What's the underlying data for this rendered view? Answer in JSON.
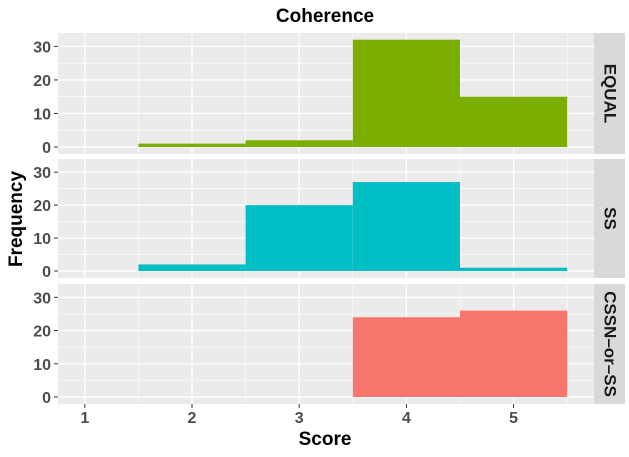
{
  "chart_data": {
    "type": "bar",
    "title": "Coherence",
    "xlabel": "Score",
    "ylabel": "Frequency",
    "xlim": [
      0.75,
      5.75
    ],
    "ylim": [
      0,
      34
    ],
    "x_ticks": [
      1,
      2,
      3,
      4,
      5
    ],
    "y_ticks": [
      0,
      10,
      20,
      30
    ],
    "bin_width": 1,
    "facets": [
      {
        "label": "EQUAL",
        "color": "#7CAE00",
        "bins": [
          {
            "x": 2,
            "count": 1
          },
          {
            "x": 3,
            "count": 2
          },
          {
            "x": 4,
            "count": 32
          },
          {
            "x": 5,
            "count": 15
          }
        ]
      },
      {
        "label": "SS",
        "color": "#00BFC4",
        "bins": [
          {
            "x": 2,
            "count": 2
          },
          {
            "x": 3,
            "count": 20
          },
          {
            "x": 4,
            "count": 27
          },
          {
            "x": 5,
            "count": 1
          }
        ]
      },
      {
        "label": "CSSN–or–SS",
        "color": "#F8766D",
        "bins": [
          {
            "x": 4,
            "count": 24
          },
          {
            "x": 5,
            "count": 26
          }
        ]
      }
    ],
    "grid": true,
    "legend": "none",
    "panel_background": "#EBEBEB",
    "strip_background": "#D9D9D9",
    "grid_color": "#FFFFFF"
  }
}
